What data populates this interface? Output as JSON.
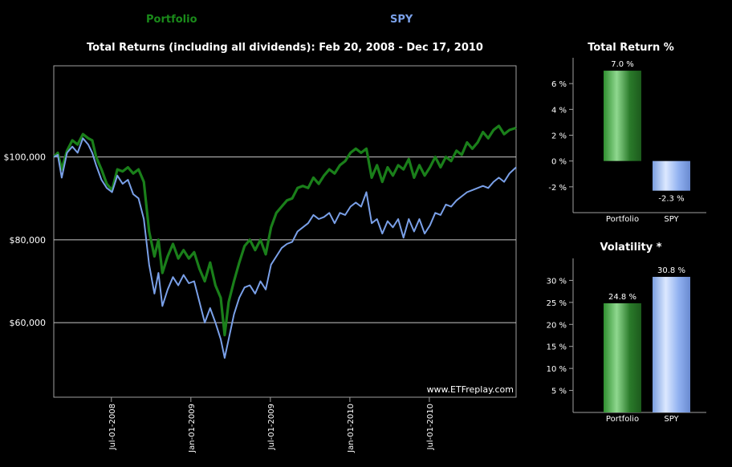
{
  "legend": {
    "portfolio": "Portfolio",
    "spy": "SPY"
  },
  "colors": {
    "portfolio": "#1a7f1a",
    "spy": "#7aa0e8",
    "grid": "#c8c8c8",
    "axis": "#a0a0a0"
  },
  "chart_data": [
    {
      "type": "line",
      "title": "Total Returns (including all dividends): Feb 20, 2008 - Dec 17, 2010",
      "watermark": "www.ETFreplay.com",
      "xlabel": "",
      "ylabel": "",
      "x_range": [
        0,
        34.9
      ],
      "ylim": [
        42000,
        122000
      ],
      "yticks": [
        60000,
        80000,
        100000
      ],
      "ytick_labels": [
        "$60,000",
        "$80,000",
        "$100,000"
      ],
      "xticks": [
        4.35,
        10.35,
        16.35,
        22.35,
        28.35
      ],
      "xtick_labels": [
        "Jul-01-2008",
        "Jan-01-2009",
        "Jul-01-2009",
        "Jan-01-2010",
        "Jul-01-2010"
      ],
      "x_unit": "months since Feb 20, 2008",
      "series": [
        {
          "name": "Portfolio",
          "x": [
            0,
            0.3,
            0.6,
            1.0,
            1.4,
            1.8,
            2.2,
            2.6,
            2.9,
            3.2,
            3.6,
            4.0,
            4.4,
            4.8,
            5.2,
            5.6,
            6.0,
            6.4,
            6.8,
            7.2,
            7.6,
            7.9,
            8.2,
            8.6,
            9.0,
            9.4,
            9.8,
            10.2,
            10.6,
            11.0,
            11.4,
            11.8,
            12.2,
            12.6,
            12.9,
            13.2,
            13.6,
            14.0,
            14.4,
            14.8,
            15.2,
            15.6,
            16.0,
            16.4,
            16.8,
            17.2,
            17.6,
            18.0,
            18.4,
            18.8,
            19.2,
            19.6,
            20.0,
            20.4,
            20.8,
            21.2,
            21.6,
            22.0,
            22.4,
            22.8,
            23.2,
            23.6,
            24.0,
            24.4,
            24.8,
            25.2,
            25.6,
            26.0,
            26.4,
            26.8,
            27.2,
            27.6,
            28.0,
            28.4,
            28.8,
            29.2,
            29.6,
            30.0,
            30.4,
            30.8,
            31.2,
            31.6,
            32.0,
            32.4,
            32.8,
            33.2,
            33.6,
            34.0,
            34.4,
            34.9
          ],
          "values": [
            100000,
            101000,
            97000,
            101500,
            104000,
            103000,
            105500,
            104500,
            104000,
            100000,
            97000,
            93500,
            92000,
            97000,
            96500,
            97500,
            96000,
            97000,
            94000,
            82000,
            76000,
            80000,
            72000,
            76000,
            79000,
            75500,
            77500,
            75500,
            77000,
            73000,
            70000,
            74500,
            69000,
            66000,
            57000,
            65000,
            70000,
            74500,
            78500,
            80000,
            77500,
            80000,
            76500,
            83000,
            86500,
            88000,
            89500,
            90000,
            92500,
            93000,
            92500,
            95000,
            93500,
            95500,
            97000,
            96000,
            98000,
            99000,
            101000,
            102000,
            101000,
            102000,
            95000,
            98000,
            94000,
            97500,
            95500,
            98000,
            97000,
            99500,
            95000,
            98000,
            95500,
            97500,
            100000,
            97500,
            100000,
            99000,
            101500,
            100500,
            103500,
            102000,
            103500,
            106000,
            104500,
            106500,
            107500,
            105500,
            106500,
            107000
          ]
        },
        {
          "name": "SPY",
          "x": [
            0,
            0.3,
            0.6,
            1.0,
            1.4,
            1.8,
            2.2,
            2.6,
            2.9,
            3.2,
            3.6,
            4.0,
            4.4,
            4.8,
            5.2,
            5.6,
            6.0,
            6.4,
            6.8,
            7.2,
            7.6,
            7.9,
            8.2,
            8.6,
            9.0,
            9.4,
            9.8,
            10.2,
            10.6,
            11.0,
            11.4,
            11.8,
            12.2,
            12.6,
            12.9,
            13.2,
            13.6,
            14.0,
            14.4,
            14.8,
            15.2,
            15.6,
            16.0,
            16.4,
            16.8,
            17.2,
            17.6,
            18.0,
            18.4,
            18.8,
            19.2,
            19.6,
            20.0,
            20.4,
            20.8,
            21.2,
            21.6,
            22.0,
            22.4,
            22.8,
            23.2,
            23.6,
            24.0,
            24.4,
            24.8,
            25.2,
            25.6,
            26.0,
            26.4,
            26.8,
            27.2,
            27.6,
            28.0,
            28.4,
            28.8,
            29.2,
            29.6,
            30.0,
            30.4,
            30.8,
            31.2,
            31.6,
            32.0,
            32.4,
            32.8,
            33.2,
            33.6,
            34.0,
            34.4,
            34.9
          ],
          "values": [
            100000,
            100500,
            95000,
            101000,
            102500,
            101000,
            104500,
            103000,
            101000,
            98000,
            94500,
            92500,
            91500,
            95500,
            93500,
            94500,
            91000,
            90000,
            85000,
            74000,
            67000,
            72000,
            64000,
            68000,
            71000,
            69000,
            71500,
            69500,
            70000,
            65000,
            60000,
            63500,
            60000,
            56000,
            51500,
            56000,
            62000,
            66000,
            68500,
            69000,
            67000,
            70000,
            68000,
            74000,
            76000,
            78000,
            79000,
            79500,
            82000,
            83000,
            84000,
            86000,
            85000,
            85500,
            86500,
            84000,
            86500,
            86000,
            88000,
            89000,
            88000,
            91500,
            84000,
            85000,
            81500,
            84500,
            83000,
            85000,
            80500,
            85000,
            82000,
            85000,
            81500,
            83500,
            86500,
            86000,
            88500,
            88000,
            89500,
            90500,
            91500,
            92000,
            92500,
            93000,
            92500,
            94000,
            95000,
            94000,
            96000,
            97500
          ]
        }
      ]
    },
    {
      "type": "bar",
      "title": "Total Return %",
      "categories": [
        "Portfolio",
        "SPY"
      ],
      "values": [
        7.0,
        -2.3
      ],
      "data_labels": [
        "7.0 %",
        "-2.3 %"
      ],
      "ylim": [
        -4,
        8
      ],
      "yticks": [
        -2,
        0,
        2,
        4,
        6
      ],
      "ytick_labels": [
        "-2 %",
        "0 %",
        "2 %",
        "4 %",
        "6 %"
      ]
    },
    {
      "type": "bar",
      "title": "Volatility  *",
      "categories": [
        "Portfolio",
        "SPY"
      ],
      "values": [
        24.8,
        30.8
      ],
      "data_labels": [
        "24.8 %",
        "30.8 %"
      ],
      "ylim": [
        0,
        35
      ],
      "yticks": [
        5,
        10,
        15,
        20,
        25,
        30
      ],
      "ytick_labels": [
        "5 %",
        "10 %",
        "15 %",
        "20 %",
        "25 %",
        "30 %"
      ]
    }
  ]
}
